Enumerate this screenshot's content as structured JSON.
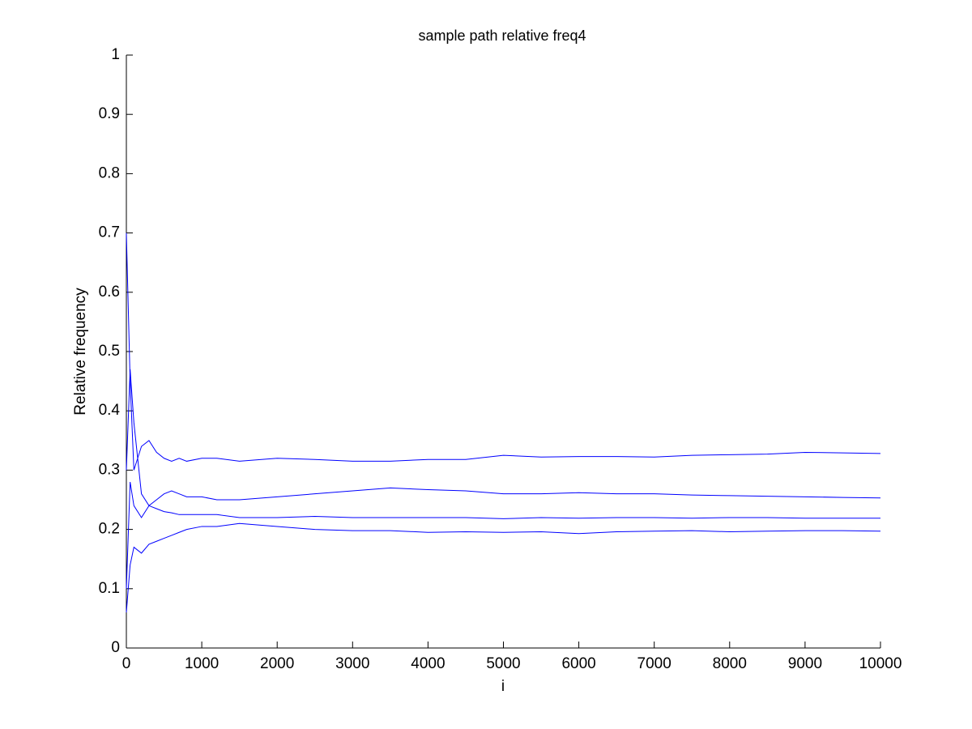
{
  "chart_data": {
    "type": "line",
    "title": "sample path relative freq4",
    "xlabel": "i",
    "ylabel": "Relative frequency",
    "x": [
      0,
      50,
      100,
      200,
      300,
      400,
      500,
      600,
      700,
      800,
      1000,
      1200,
      1500,
      2000,
      2500,
      3000,
      3500,
      4000,
      4500,
      5000,
      5500,
      6000,
      6500,
      7000,
      7500,
      8000,
      8500,
      9000,
      9500,
      10000
    ],
    "series": [
      {
        "color": "#0000ff",
        "values": [
          0.7,
          0.45,
          0.3,
          0.34,
          0.35,
          0.33,
          0.32,
          0.315,
          0.32,
          0.315,
          0.32,
          0.32,
          0.315,
          0.32,
          0.318,
          0.315,
          0.315,
          0.318,
          0.318,
          0.325,
          0.322,
          0.323,
          0.323,
          0.322,
          0.325,
          0.326,
          0.327,
          0.33,
          0.329,
          0.328
        ]
      },
      {
        "color": "#0000ff",
        "values": [
          0.3,
          0.47,
          0.38,
          0.26,
          0.24,
          0.25,
          0.26,
          0.265,
          0.26,
          0.255,
          0.255,
          0.25,
          0.25,
          0.255,
          0.26,
          0.265,
          0.27,
          0.267,
          0.265,
          0.26,
          0.26,
          0.262,
          0.26,
          0.26,
          0.258,
          0.257,
          0.256,
          0.255,
          0.254,
          0.253
        ]
      },
      {
        "color": "#0000ff",
        "values": [
          0.1,
          0.28,
          0.24,
          0.22,
          0.24,
          0.235,
          0.23,
          0.228,
          0.225,
          0.225,
          0.225,
          0.225,
          0.22,
          0.22,
          0.222,
          0.22,
          0.22,
          0.22,
          0.22,
          0.218,
          0.22,
          0.219,
          0.22,
          0.22,
          0.219,
          0.22,
          0.22,
          0.219,
          0.219,
          0.219
        ]
      },
      {
        "color": "#0000ff",
        "values": [
          0.06,
          0.14,
          0.17,
          0.16,
          0.175,
          0.18,
          0.185,
          0.19,
          0.195,
          0.2,
          0.205,
          0.205,
          0.21,
          0.205,
          0.2,
          0.198,
          0.198,
          0.195,
          0.196,
          0.195,
          0.196,
          0.193,
          0.196,
          0.197,
          0.198,
          0.196,
          0.197,
          0.198,
          0.198,
          0.197
        ]
      }
    ],
    "xlim": [
      0,
      10000
    ],
    "xticks": [
      0,
      1000,
      2000,
      3000,
      4000,
      5000,
      6000,
      7000,
      8000,
      9000,
      10000
    ],
    "ylim": [
      0,
      1
    ],
    "yticks": [
      0,
      0.1,
      0.2,
      0.3,
      0.4,
      0.5,
      0.6,
      0.7,
      0.8,
      0.9,
      1
    ],
    "grid": false
  }
}
